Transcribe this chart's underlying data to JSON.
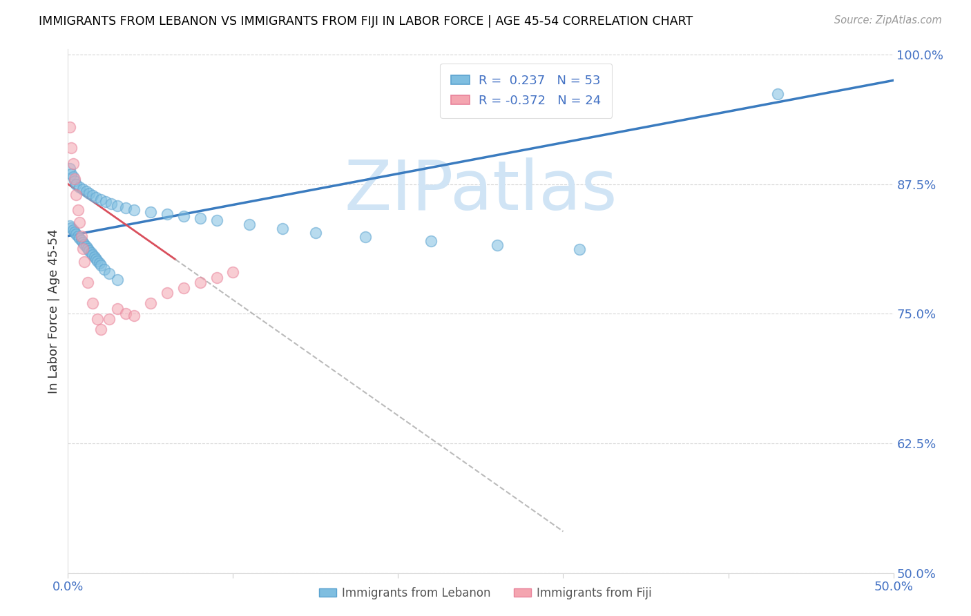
{
  "title": "IMMIGRANTS FROM LEBANON VS IMMIGRANTS FROM FIJI IN LABOR FORCE | AGE 45-54 CORRELATION CHART",
  "source": "Source: ZipAtlas.com",
  "ylabel": "In Labor Force | Age 45-54",
  "x_min": 0.0,
  "x_max": 0.5,
  "y_min": 0.5,
  "y_max": 1.005,
  "x_tick_positions": [
    0.0,
    0.1,
    0.2,
    0.3,
    0.4,
    0.5
  ],
  "x_tick_labels": [
    "0.0%",
    "",
    "",
    "",
    "",
    "50.0%"
  ],
  "y_ticks_right": [
    1.0,
    0.875,
    0.75,
    0.625,
    0.5
  ],
  "y_tick_labels_right": [
    "100.0%",
    "87.5%",
    "75.0%",
    "62.5%",
    "50.0%"
  ],
  "lebanon_color": "#7fbee0",
  "fiji_color": "#f4a5b0",
  "lebanon_edge_color": "#5ba3d0",
  "fiji_edge_color": "#e8829a",
  "lebanon_line_color": "#3a7bbf",
  "fiji_line_color": "#d94f5c",
  "fiji_dash_color": "#cccccc",
  "lebanon_R": 0.237,
  "lebanon_N": 53,
  "fiji_R": -0.372,
  "fiji_N": 24,
  "legend_label_lebanon": "Immigrants from Lebanon",
  "legend_label_fiji": "Immigrants from Fiji",
  "grid_color": "#cccccc",
  "axis_color": "#4472C4",
  "title_color": "#000000",
  "background_color": "#ffffff",
  "watermark_color": "#d0e4f5",
  "lebanon_x": [
    0.001,
    0.002,
    0.003,
    0.004,
    0.005,
    0.007,
    0.009,
    0.011,
    0.013,
    0.015,
    0.017,
    0.02,
    0.023,
    0.026,
    0.03,
    0.035,
    0.04,
    0.05,
    0.06,
    0.07,
    0.08,
    0.09,
    0.11,
    0.13,
    0.15,
    0.18,
    0.22,
    0.26,
    0.31,
    0.43,
    0.001,
    0.002,
    0.003,
    0.004,
    0.005,
    0.006,
    0.007,
    0.008,
    0.009,
    0.01,
    0.011,
    0.012,
    0.013,
    0.014,
    0.015,
    0.016,
    0.017,
    0.018,
    0.019,
    0.02,
    0.022,
    0.025,
    0.03
  ],
  "lebanon_y": [
    0.89,
    0.885,
    0.882,
    0.878,
    0.875,
    0.872,
    0.87,
    0.868,
    0.866,
    0.864,
    0.862,
    0.86,
    0.858,
    0.856,
    0.854,
    0.852,
    0.85,
    0.848,
    0.846,
    0.844,
    0.842,
    0.84,
    0.836,
    0.832,
    0.828,
    0.824,
    0.82,
    0.816,
    0.812,
    0.962,
    0.835,
    0.833,
    0.831,
    0.829,
    0.827,
    0.825,
    0.823,
    0.821,
    0.819,
    0.817,
    0.815,
    0.813,
    0.811,
    0.809,
    0.807,
    0.805,
    0.803,
    0.801,
    0.799,
    0.797,
    0.793,
    0.789,
    0.783
  ],
  "fiji_x": [
    0.001,
    0.002,
    0.003,
    0.004,
    0.005,
    0.006,
    0.007,
    0.008,
    0.009,
    0.01,
    0.012,
    0.015,
    0.018,
    0.02,
    0.025,
    0.03,
    0.035,
    0.04,
    0.05,
    0.06,
    0.07,
    0.08,
    0.09,
    0.1
  ],
  "fiji_y": [
    0.93,
    0.91,
    0.895,
    0.88,
    0.865,
    0.85,
    0.838,
    0.825,
    0.813,
    0.8,
    0.78,
    0.76,
    0.745,
    0.735,
    0.745,
    0.755,
    0.75,
    0.748,
    0.76,
    0.77,
    0.775,
    0.78,
    0.785,
    0.79
  ],
  "leb_line_x0": 0.0,
  "leb_line_y0": 0.825,
  "leb_line_x1": 0.5,
  "leb_line_y1": 0.975,
  "fiji_line_x0": 0.0,
  "fiji_line_y0": 0.875,
  "fiji_line_x1": 0.3,
  "fiji_line_y1": 0.54
}
